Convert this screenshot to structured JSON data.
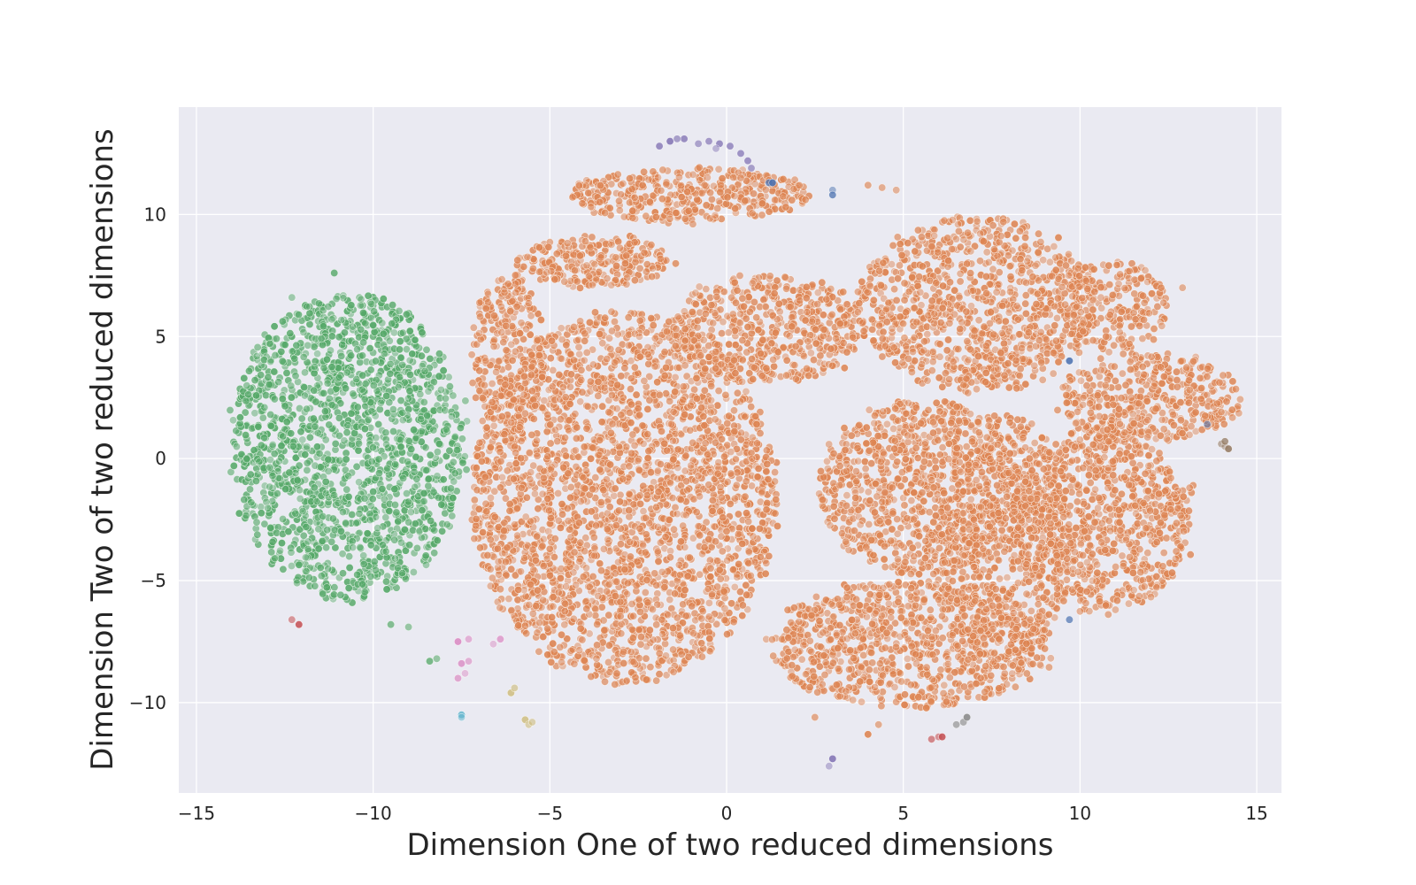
{
  "chart_data": {
    "type": "scatter",
    "title": "",
    "xlabel": "Dimension One of two reduced dimensions",
    "ylabel": "Dimension Two of two reduced dimensions",
    "xlim": [
      -15.5,
      15.7
    ],
    "ylim": [
      -13.7,
      14.4
    ],
    "xticks": [
      -15,
      -10,
      -5,
      0,
      5,
      10,
      15
    ],
    "yticks": [
      -10,
      -5,
      0,
      5,
      10
    ],
    "xtick_labels": [
      "−15",
      "−10",
      "−5",
      "0",
      "5",
      "10",
      "15"
    ],
    "ytick_labels": [
      "−10",
      "−5",
      "0",
      "5",
      "10"
    ],
    "grid": true,
    "legend": "none",
    "background": "#eaeaf2",
    "series": [
      {
        "color": "#55a868",
        "clusters": [
          {
            "cx": -10.7,
            "cy": 0.5,
            "rx": 3.3,
            "ry": 6.3,
            "n": 1600
          }
        ],
        "points": [
          [
            -9.5,
            -6.8
          ],
          [
            -9.0,
            -6.9
          ],
          [
            -8.4,
            -8.3
          ],
          [
            -8.2,
            -8.2
          ],
          [
            -12.3,
            6.6
          ],
          [
            -11.1,
            7.6
          ]
        ]
      },
      {
        "color": "#dd8452",
        "clusters": [
          {
            "cx": -2.9,
            "cy": -1.6,
            "rx": 4.3,
            "ry": 7.6,
            "n": 2600
          },
          {
            "cx": -6.2,
            "cy": 4.3,
            "rx": 1.0,
            "ry": 3.3,
            "n": 260
          },
          {
            "cx": -1.0,
            "cy": 10.8,
            "rx": 3.4,
            "ry": 1.1,
            "n": 380
          },
          {
            "cx": -3.7,
            "cy": 8.1,
            "rx": 2.2,
            "ry": 1.0,
            "n": 260
          },
          {
            "cx": 1.2,
            "cy": 5.3,
            "rx": 2.8,
            "ry": 2.2,
            "n": 520
          },
          {
            "cx": 5.6,
            "cy": -1.2,
            "rx": 3.0,
            "ry": 3.6,
            "n": 900
          },
          {
            "cx": 5.2,
            "cy": -7.6,
            "rx": 4.0,
            "ry": 2.6,
            "n": 900
          },
          {
            "cx": 7.9,
            "cy": -3.3,
            "rx": 1.8,
            "ry": 5.2,
            "n": 600
          },
          {
            "cx": 10.6,
            "cy": -2.5,
            "rx": 2.5,
            "ry": 3.8,
            "n": 800
          },
          {
            "cx": 7.1,
            "cy": 6.3,
            "rx": 3.4,
            "ry": 3.6,
            "n": 950
          },
          {
            "cx": 10.9,
            "cy": 6.3,
            "rx": 1.6,
            "ry": 1.9,
            "n": 200
          },
          {
            "cx": 12.0,
            "cy": 2.5,
            "rx": 2.6,
            "ry": 1.8,
            "n": 400
          }
        ],
        "points": [
          [
            0.4,
            11.5
          ],
          [
            4.0,
            11.2
          ],
          [
            4.4,
            11.1
          ],
          [
            4.8,
            11.0
          ],
          [
            12.9,
            7.0
          ],
          [
            13.2,
            -1.1
          ],
          [
            13.1,
            -1.2
          ],
          [
            2.5,
            -10.6
          ],
          [
            4.0,
            -11.3
          ],
          [
            4.3,
            -10.9
          ]
        ]
      },
      {
        "color": "#8172b3",
        "points": [
          [
            -1.9,
            12.8
          ],
          [
            -1.6,
            13.0
          ],
          [
            -1.2,
            13.1
          ],
          [
            -0.8,
            12.9
          ],
          [
            -0.5,
            13.0
          ],
          [
            -0.2,
            12.9
          ],
          [
            0.1,
            12.8
          ],
          [
            0.4,
            12.5
          ],
          [
            0.6,
            12.2
          ],
          [
            0.7,
            11.9
          ],
          [
            2.9,
            -12.6
          ],
          [
            3.0,
            -12.3
          ],
          [
            -1.4,
            13.1
          ],
          [
            -0.3,
            12.7
          ]
        ]
      },
      {
        "color": "#4c72b0",
        "points": [
          [
            3.0,
            11.0
          ],
          [
            3.0,
            10.8
          ],
          [
            1.2,
            11.3
          ],
          [
            1.3,
            11.3
          ],
          [
            9.7,
            4.0
          ],
          [
            13.6,
            1.4
          ],
          [
            9.7,
            -6.6
          ]
        ]
      },
      {
        "color": "#da8bc3",
        "points": [
          [
            -7.6,
            -7.5
          ],
          [
            -7.3,
            -7.4
          ],
          [
            -7.5,
            -8.4
          ],
          [
            -7.3,
            -8.3
          ],
          [
            -7.6,
            -9.0
          ],
          [
            -7.4,
            -8.8
          ],
          [
            -6.6,
            -7.6
          ],
          [
            -6.4,
            -7.4
          ]
        ]
      },
      {
        "color": "#c44e52",
        "points": [
          [
            -12.3,
            -6.6
          ],
          [
            -12.1,
            -6.8
          ],
          [
            5.8,
            -11.5
          ],
          [
            6.0,
            -11.4
          ],
          [
            6.1,
            -11.4
          ]
        ]
      },
      {
        "color": "#ccb974",
        "points": [
          [
            -6.1,
            -9.6
          ],
          [
            -6.0,
            -9.4
          ],
          [
            -5.7,
            -10.7
          ],
          [
            -5.6,
            -10.9
          ],
          [
            -5.5,
            -10.8
          ]
        ]
      },
      {
        "color": "#64b5cd",
        "points": [
          [
            -7.5,
            -10.5
          ],
          [
            -7.5,
            -10.6
          ]
        ]
      },
      {
        "color": "#8c8c8c",
        "points": [
          [
            6.5,
            -10.9
          ],
          [
            6.7,
            -10.8
          ],
          [
            6.8,
            -10.6
          ]
        ]
      },
      {
        "color": "#937860",
        "points": [
          [
            14.0,
            0.6
          ],
          [
            14.1,
            0.5
          ],
          [
            14.2,
            0.4
          ],
          [
            14.1,
            0.7
          ]
        ]
      }
    ]
  }
}
